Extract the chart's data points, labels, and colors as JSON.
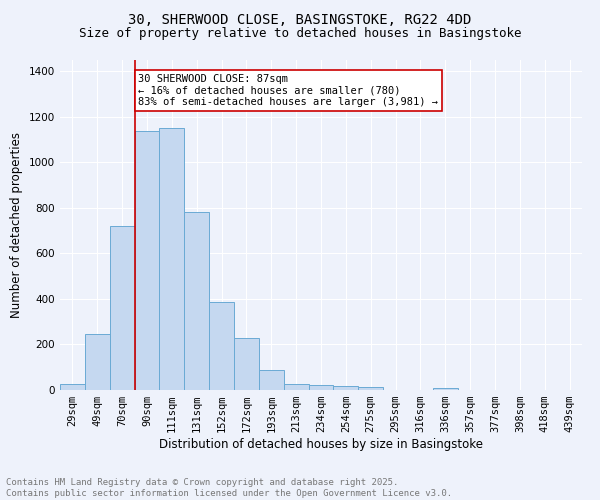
{
  "title_line1": "30, SHERWOOD CLOSE, BASINGSTOKE, RG22 4DD",
  "title_line2": "Size of property relative to detached houses in Basingstoke",
  "xlabel": "Distribution of detached houses by size in Basingstoke",
  "ylabel": "Number of detached properties",
  "categories": [
    "29sqm",
    "49sqm",
    "70sqm",
    "90sqm",
    "111sqm",
    "131sqm",
    "152sqm",
    "172sqm",
    "193sqm",
    "213sqm",
    "234sqm",
    "254sqm",
    "275sqm",
    "295sqm",
    "316sqm",
    "336sqm",
    "357sqm",
    "377sqm",
    "398sqm",
    "418sqm",
    "439sqm"
  ],
  "values": [
    28,
    248,
    720,
    1140,
    1150,
    780,
    388,
    228,
    90,
    28,
    22,
    18,
    15,
    0,
    0,
    10,
    0,
    0,
    0,
    0,
    0
  ],
  "bar_color": "#c5d8f0",
  "bar_edge_color": "#6aaad4",
  "red_line_index": 3,
  "annotation_text": "30 SHERWOOD CLOSE: 87sqm\n← 16% of detached houses are smaller (780)\n83% of semi-detached houses are larger (3,981) →",
  "annotation_box_color": "#ffffff",
  "annotation_edge_color": "#cc0000",
  "ylim": [
    0,
    1450
  ],
  "yticks": [
    0,
    200,
    400,
    600,
    800,
    1000,
    1200,
    1400
  ],
  "background_color": "#eef2fb",
  "grid_color": "#ffffff",
  "footer_line1": "Contains HM Land Registry data © Crown copyright and database right 2025.",
  "footer_line2": "Contains public sector information licensed under the Open Government Licence v3.0.",
  "title_fontsize": 10,
  "subtitle_fontsize": 9,
  "axis_label_fontsize": 8.5,
  "tick_fontsize": 7.5,
  "annotation_fontsize": 7.5,
  "footer_fontsize": 6.5
}
